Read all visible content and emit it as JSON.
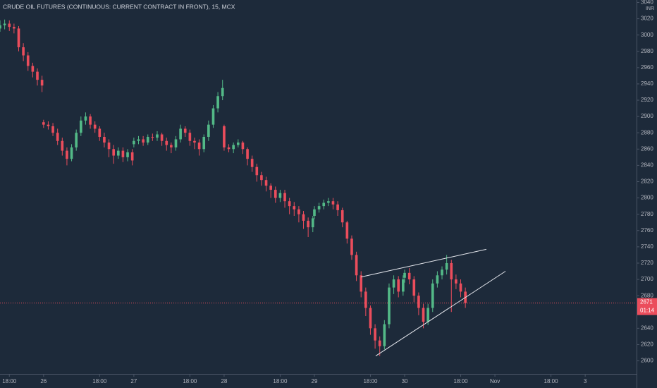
{
  "chart_data": {
    "type": "candlestick",
    "title": "CRUDE OIL FUTURES (CONTINUOUS: CURRENT CONTRACT IN FRONT), 15, MCX",
    "currency": "INR",
    "up_color": "#53b987",
    "down_color": "#eb4d5c",
    "line_color": "#e6e8ee",
    "xlim": [
      -28,
      381
    ],
    "ylim": [
      2584,
      3043
    ],
    "yticks": [
      2600,
      2620,
      2640,
      2660,
      2680,
      2700,
      2720,
      2740,
      2760,
      2780,
      2800,
      2820,
      2840,
      2860,
      2880,
      2900,
      2920,
      2940,
      2960,
      2980,
      3000,
      3020,
      3040
    ],
    "xticks": [
      {
        "value": -22,
        "label": "18:00"
      },
      {
        "value": 0,
        "label": "26"
      },
      {
        "value": 36,
        "label": "18:00"
      },
      {
        "value": 58,
        "label": "27"
      },
      {
        "value": 94,
        "label": "18:00"
      },
      {
        "value": 116,
        "label": "28"
      },
      {
        "value": 152,
        "label": "18:00"
      },
      {
        "value": 174,
        "label": "29"
      },
      {
        "value": 210,
        "label": "18:00"
      },
      {
        "value": 232,
        "label": "30"
      },
      {
        "value": 268,
        "label": "18:00"
      },
      {
        "value": 290,
        "label": "Nov"
      },
      {
        "value": 326,
        "label": "18:00"
      },
      {
        "value": 348,
        "label": "3"
      }
    ],
    "last_price": 2671,
    "countdown": "01:14",
    "x": [
      -28,
      -25,
      -22,
      -19,
      -16,
      -13,
      -10,
      -7,
      -4,
      -1,
      0,
      3,
      6,
      9,
      12,
      15,
      18,
      21,
      24,
      27,
      30,
      33,
      36,
      39,
      42,
      45,
      48,
      51,
      54,
      57,
      58,
      61,
      64,
      67,
      70,
      73,
      76,
      79,
      82,
      85,
      88,
      91,
      94,
      97,
      100,
      103,
      106,
      109,
      112,
      115,
      116,
      119,
      122,
      125,
      128,
      131,
      134,
      137,
      140,
      143,
      146,
      149,
      152,
      155,
      158,
      161,
      164,
      167,
      170,
      173,
      174,
      177,
      180,
      183,
      186,
      189,
      192,
      195,
      198,
      201,
      204,
      207,
      210,
      213,
      216,
      219,
      222,
      225,
      228,
      231,
      232,
      235,
      238,
      241,
      244,
      247,
      250,
      253,
      256,
      259,
      262,
      265,
      268,
      271
    ],
    "ohlc": [
      [
        3008,
        3018,
        3004,
        3012
      ],
      [
        3012,
        3019,
        3007,
        3014
      ],
      [
        3014,
        3018,
        3005,
        3010
      ],
      [
        3010,
        3014,
        3002,
        3008
      ],
      [
        3008,
        3011,
        2980,
        2985
      ],
      [
        2985,
        2990,
        2968,
        2975
      ],
      [
        2975,
        2979,
        2956,
        2962
      ],
      [
        2962,
        2966,
        2948,
        2955
      ],
      [
        2955,
        2959,
        2938,
        2945
      ],
      [
        2945,
        2950,
        2930,
        2938
      ],
      [
        2893,
        2896,
        2886,
        2890
      ],
      [
        2890,
        2894,
        2884,
        2888
      ],
      [
        2888,
        2892,
        2876,
        2880
      ],
      [
        2880,
        2885,
        2865,
        2870
      ],
      [
        2870,
        2874,
        2852,
        2858
      ],
      [
        2858,
        2862,
        2840,
        2848
      ],
      [
        2848,
        2866,
        2845,
        2862
      ],
      [
        2862,
        2884,
        2858,
        2880
      ],
      [
        2880,
        2900,
        2876,
        2895
      ],
      [
        2895,
        2905,
        2890,
        2900
      ],
      [
        2900,
        2903,
        2885,
        2890
      ],
      [
        2890,
        2894,
        2880,
        2885
      ],
      [
        2885,
        2888,
        2870,
        2875
      ],
      [
        2875,
        2880,
        2862,
        2868
      ],
      [
        2868,
        2872,
        2850,
        2860
      ],
      [
        2860,
        2865,
        2842,
        2852
      ],
      [
        2852,
        2862,
        2848,
        2858
      ],
      [
        2858,
        2862,
        2844,
        2850
      ],
      [
        2850,
        2860,
        2845,
        2856
      ],
      [
        2856,
        2860,
        2840,
        2846
      ],
      [
        2866,
        2874,
        2862,
        2870
      ],
      [
        2870,
        2876,
        2866,
        2872
      ],
      [
        2872,
        2876,
        2864,
        2868
      ],
      [
        2868,
        2878,
        2865,
        2875
      ],
      [
        2875,
        2879,
        2870,
        2874
      ],
      [
        2874,
        2882,
        2870,
        2878
      ],
      [
        2878,
        2880,
        2864,
        2870
      ],
      [
        2870,
        2874,
        2858,
        2865
      ],
      [
        2865,
        2868,
        2855,
        2862
      ],
      [
        2862,
        2876,
        2858,
        2872
      ],
      [
        2872,
        2890,
        2868,
        2885
      ],
      [
        2885,
        2888,
        2875,
        2880
      ],
      [
        2880,
        2884,
        2864,
        2870
      ],
      [
        2870,
        2874,
        2860,
        2868
      ],
      [
        2868,
        2872,
        2852,
        2860
      ],
      [
        2860,
        2878,
        2856,
        2875
      ],
      [
        2875,
        2895,
        2870,
        2890
      ],
      [
        2890,
        2914,
        2886,
        2910
      ],
      [
        2910,
        2930,
        2905,
        2925
      ],
      [
        2925,
        2945,
        2920,
        2935
      ],
      [
        2888,
        2890,
        2858,
        2862
      ],
      [
        2862,
        2866,
        2856,
        2860
      ],
      [
        2860,
        2868,
        2855,
        2865
      ],
      [
        2865,
        2872,
        2862,
        2868
      ],
      [
        2868,
        2870,
        2854,
        2860
      ],
      [
        2860,
        2862,
        2840,
        2848
      ],
      [
        2848,
        2852,
        2832,
        2838
      ],
      [
        2838,
        2842,
        2820,
        2828
      ],
      [
        2828,
        2832,
        2815,
        2822
      ],
      [
        2822,
        2826,
        2808,
        2815
      ],
      [
        2815,
        2818,
        2800,
        2810
      ],
      [
        2810,
        2814,
        2794,
        2800
      ],
      [
        2800,
        2810,
        2795,
        2806
      ],
      [
        2806,
        2810,
        2788,
        2796
      ],
      [
        2796,
        2800,
        2780,
        2790
      ],
      [
        2790,
        2795,
        2778,
        2786
      ],
      [
        2786,
        2790,
        2770,
        2780
      ],
      [
        2780,
        2784,
        2762,
        2772
      ],
      [
        2772,
        2776,
        2752,
        2764
      ],
      [
        2764,
        2778,
        2758,
        2775
      ],
      [
        2778,
        2790,
        2774,
        2786
      ],
      [
        2786,
        2794,
        2782,
        2790
      ],
      [
        2790,
        2798,
        2786,
        2794
      ],
      [
        2794,
        2800,
        2790,
        2796
      ],
      [
        2796,
        2800,
        2786,
        2792
      ],
      [
        2792,
        2796,
        2778,
        2785
      ],
      [
        2785,
        2788,
        2764,
        2770
      ],
      [
        2770,
        2772,
        2744,
        2750
      ],
      [
        2750,
        2754,
        2724,
        2730
      ],
      [
        2730,
        2734,
        2698,
        2705
      ],
      [
        2705,
        2710,
        2678,
        2685
      ],
      [
        2685,
        2690,
        2655,
        2665
      ],
      [
        2665,
        2668,
        2632,
        2640
      ],
      [
        2640,
        2645,
        2615,
        2625
      ],
      [
        2625,
        2630,
        2606,
        2618
      ],
      [
        2618,
        2650,
        2614,
        2645
      ],
      [
        2645,
        2695,
        2640,
        2690
      ],
      [
        2690,
        2705,
        2682,
        2700
      ],
      [
        2700,
        2704,
        2678,
        2685
      ],
      [
        2685,
        2705,
        2680,
        2700
      ],
      [
        2702,
        2712,
        2696,
        2708
      ],
      [
        2708,
        2714,
        2694,
        2700
      ],
      [
        2700,
        2704,
        2672,
        2680
      ],
      [
        2680,
        2684,
        2656,
        2665
      ],
      [
        2665,
        2670,
        2640,
        2648
      ],
      [
        2648,
        2670,
        2644,
        2665
      ],
      [
        2665,
        2700,
        2660,
        2695
      ],
      [
        2695,
        2710,
        2690,
        2705
      ],
      [
        2705,
        2716,
        2700,
        2712
      ],
      [
        2712,
        2730,
        2706,
        2720
      ],
      [
        2720,
        2724,
        2660,
        2700
      ],
      [
        2700,
        2706,
        2688,
        2695
      ],
      [
        2695,
        2700,
        2678,
        2685
      ],
      [
        2685,
        2690,
        2665,
        2671
      ]
    ],
    "trendlines": [
      {
        "x": [
          204,
          284.5
        ],
        "y": [
          2703,
          2737
        ]
      },
      {
        "x": [
          213.4,
          296.8
        ],
        "y": [
          2606,
          2710
        ]
      }
    ]
  }
}
